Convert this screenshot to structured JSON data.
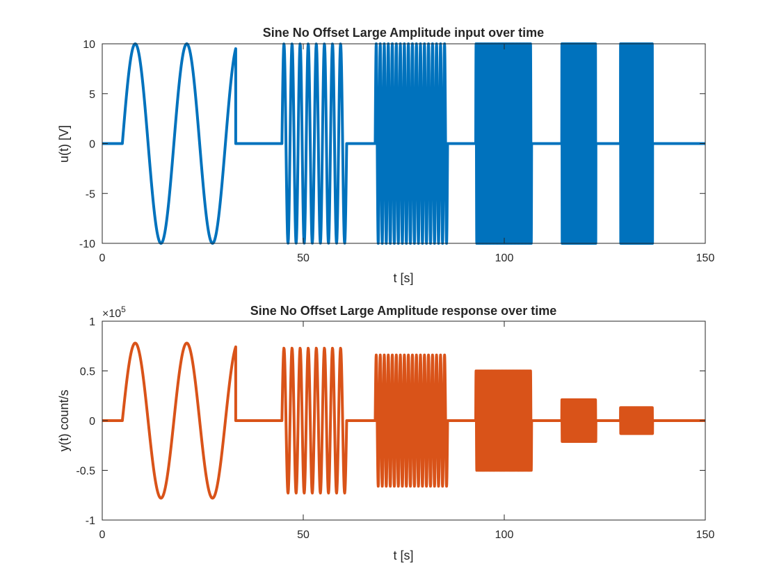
{
  "chart_data": [
    {
      "type": "line",
      "title": "Sine No Offset Large Amplitude input over time",
      "xlabel": "t [s]",
      "ylabel": "u(t) [V]",
      "xlim": [
        0,
        150
      ],
      "ylim": [
        -10,
        10
      ],
      "xticks": [
        0,
        50,
        100,
        150
      ],
      "yticks": [
        -10,
        -5,
        0,
        5,
        10
      ],
      "xtick_labels": [
        "0",
        "50",
        "100",
        "150"
      ],
      "ytick_labels": [
        "-10",
        "-5",
        "0",
        "5",
        "10"
      ],
      "grid": false,
      "color": "#0072BD",
      "baseline": 0,
      "t_end": 150,
      "bursts": [
        {
          "t_start": 5,
          "t_end": 33.2,
          "amplitude": 10,
          "cycles": 2.2
        },
        {
          "t_start": 44.7,
          "t_end": 60.8,
          "amplitude": 10,
          "cycles": 8
        },
        {
          "t_start": 67.9,
          "t_end": 85.9,
          "amplitude": 10,
          "cycles": 18
        },
        {
          "t_start": 92.9,
          "t_end": 106.8,
          "amplitude": 10,
          "cycles": 40
        },
        {
          "t_start": 114.3,
          "t_end": 122.8,
          "amplitude": 10,
          "cycles": 60
        },
        {
          "t_start": 128.9,
          "t_end": 136.9,
          "amplitude": 10,
          "cycles": 80
        }
      ]
    },
    {
      "type": "line",
      "title": "Sine No Offset Large Amplitude response over time",
      "xlabel": "t [s]",
      "ylabel": "y(t) count/s",
      "exponent_label": "×10",
      "exponent_power": "5",
      "xlim": [
        0,
        150
      ],
      "ylim": [
        -100000,
        100000
      ],
      "xticks": [
        0,
        50,
        100,
        150
      ],
      "yticks": [
        -100000,
        -50000,
        0,
        50000,
        100000
      ],
      "xtick_labels": [
        "0",
        "50",
        "100",
        "150"
      ],
      "ytick_labels": [
        "-1",
        "-0.5",
        "0",
        "0.5",
        "1"
      ],
      "grid": false,
      "color": "#D95319",
      "baseline": 0,
      "t_end": 150,
      "bursts": [
        {
          "t_start": 5,
          "t_end": 33.2,
          "amplitude": 78000,
          "cycles": 2.2
        },
        {
          "t_start": 44.7,
          "t_end": 60.8,
          "amplitude": 73000,
          "cycles": 8
        },
        {
          "t_start": 67.9,
          "t_end": 85.9,
          "amplitude": 66000,
          "cycles": 18
        },
        {
          "t_start": 92.9,
          "t_end": 106.8,
          "amplitude": 50000,
          "cycles": 40
        },
        {
          "t_start": 114.3,
          "t_end": 122.8,
          "amplitude": 21000,
          "cycles": 60
        },
        {
          "t_start": 128.9,
          "t_end": 136.9,
          "amplitude": 13000,
          "cycles": 80
        }
      ]
    }
  ]
}
